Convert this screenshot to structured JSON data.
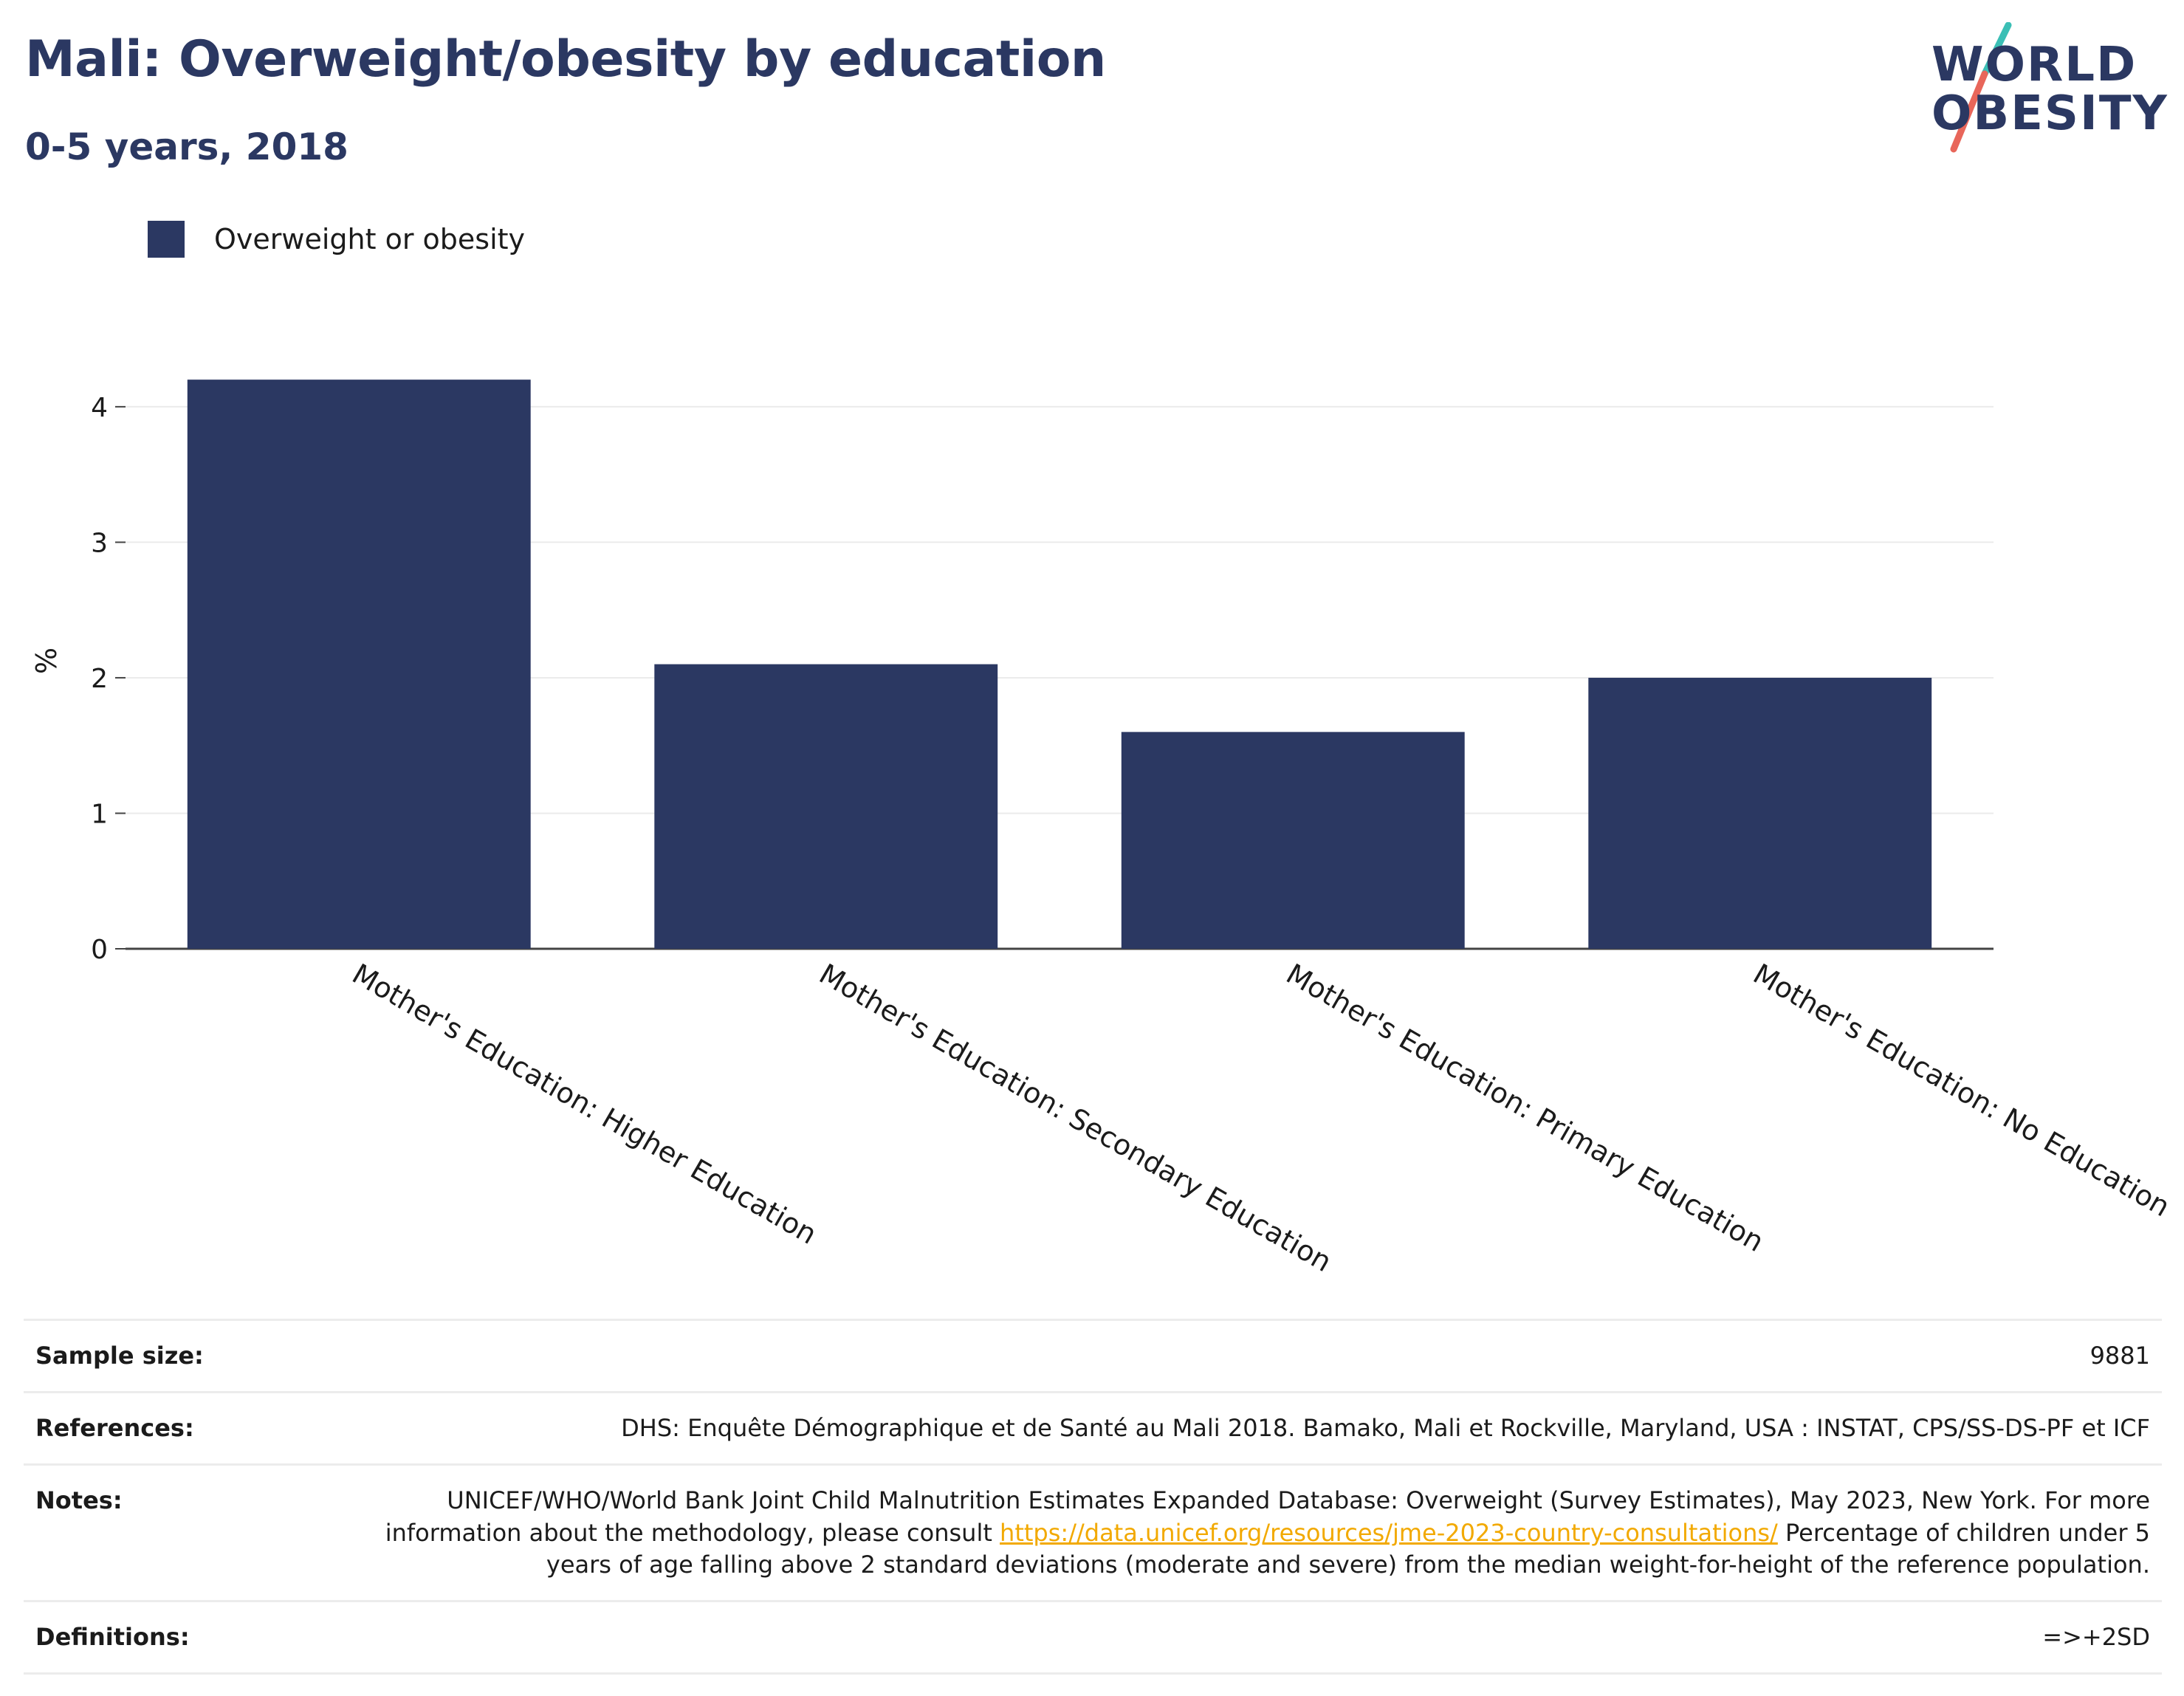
{
  "header": {
    "title": "Mali: Overweight/obesity by education",
    "subtitle": "0-5 years, 2018"
  },
  "logo": {
    "line1": "WORLD",
    "line2": "OBESITY",
    "colors": {
      "text": "#2b3862",
      "slash_top": "#3bbfb5",
      "slash_bottom": "#e8665a"
    }
  },
  "legend": {
    "label": "Overweight or obesity",
    "color": "#2b3862"
  },
  "chart_data": {
    "type": "bar",
    "categories": [
      "Mother's Education: Higher Education",
      "Mother's Education: Secondary Education",
      "Mother's Education: Primary Education",
      "Mother's Education: No Education"
    ],
    "series": [
      {
        "name": "Overweight or obesity",
        "values": [
          4.2,
          2.1,
          1.6,
          2.0
        ],
        "color": "#2b3862"
      }
    ],
    "ylabel": "%",
    "ylim": [
      0,
      4.25
    ],
    "yticks": [
      0,
      1,
      2,
      3,
      4
    ],
    "grid": true,
    "legend_position": "top-left"
  },
  "info": {
    "rows": [
      {
        "label": "Sample size:",
        "value": "9881"
      },
      {
        "label": "References:",
        "value": "DHS: Enquête Démographique et de Santé au Mali 2018. Bamako, Mali et Rockville, Maryland, USA : INSTAT, CPS/SS-DS-PF et ICF"
      }
    ],
    "notes": {
      "label": "Notes:",
      "text_before": "UNICEF/WHO/World Bank Joint Child Malnutrition Estimates Expanded Database: Overweight (Survey Estimates), May 2023, New York. For more information about the methodology, please consult ",
      "link": "https://data.unicef.org/resources/jme-2023-country-consultations/",
      "text_after": " Percentage of children under 5 years of age falling above 2 standard deviations (moderate and severe) from the median weight-for-height of the reference population."
    },
    "definitions": {
      "label": "Definitions:",
      "value": "=>+2SD"
    }
  }
}
